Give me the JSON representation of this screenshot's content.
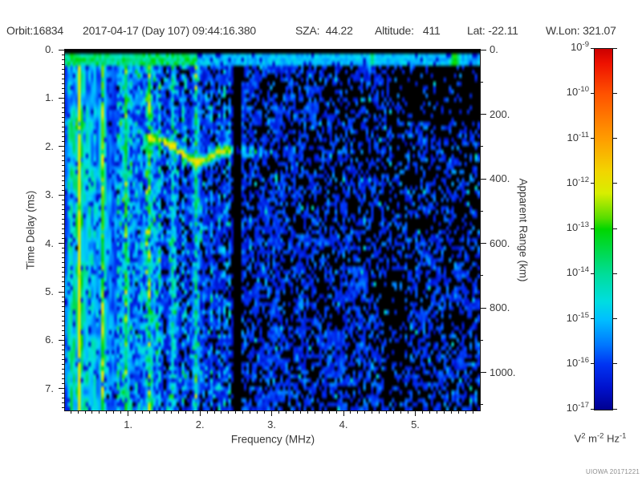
{
  "header": {
    "segments": [
      "Orbit:16834",
      "2017-04-17 (Day 107) 09:44:16.380",
      "SZA:  44.22",
      "Altitude:   411",
      "Lat: -22.11",
      "W.Lon: 321.07"
    ]
  },
  "chart_data": {
    "type": "heatmap",
    "title": "Orbit:16834  2017-04-17 (Day 107) 09:44:16.380  SZA: 44.22  Altitude: 411  Lat: -22.11  W.Lon: 321.07",
    "x_axis": {
      "label": "Frequency (MHz)",
      "min": 0.12,
      "max": 5.9,
      "ticks": [
        {
          "f": 1,
          "label": "1."
        },
        {
          "f": 2,
          "label": "2."
        },
        {
          "f": 3,
          "label": "3."
        },
        {
          "f": 4,
          "label": "4."
        },
        {
          "f": 5,
          "label": "5."
        }
      ],
      "minor_step": 0.1
    },
    "y_axis_left": {
      "label": "Time Delay (ms)",
      "min": 0,
      "max": 7.45,
      "ticks": [
        {
          "t": 0,
          "label": "0."
        },
        {
          "t": 1,
          "label": "1."
        },
        {
          "t": 2,
          "label": "2."
        },
        {
          "t": 3,
          "label": "3."
        },
        {
          "t": 4,
          "label": "4."
        },
        {
          "t": 5,
          "label": "5."
        },
        {
          "t": 6,
          "label": "6."
        },
        {
          "t": 7,
          "label": "7."
        }
      ],
      "minor_step": 0.1
    },
    "y_axis_right": {
      "label": "Apparent Range (km)",
      "km_per_ms": 150,
      "ticks": [
        {
          "km": 0,
          "label": "0."
        },
        {
          "km": 200,
          "label": "200."
        },
        {
          "km": 400,
          "label": "400."
        },
        {
          "km": 600,
          "label": "600."
        },
        {
          "km": 800,
          "label": "800."
        },
        {
          "km": 1000,
          "label": "1000."
        }
      ],
      "minor_step": 100
    },
    "colorbar": {
      "scale": "log",
      "exponents": [
        -9,
        -10,
        -11,
        -12,
        -13,
        -14,
        -15,
        -16,
        -17
      ],
      "unit_parts": [
        [
          "V",
          false
        ],
        [
          "2",
          true
        ],
        [
          " m",
          false
        ],
        [
          "-2",
          true
        ],
        [
          " Hz",
          false
        ],
        [
          "-1",
          true
        ]
      ],
      "stops": [
        {
          "p": 0.0,
          "c": "#cc0000"
        },
        {
          "p": 0.04,
          "c": "#ee1100"
        },
        {
          "p": 0.125,
          "c": "#ff5200"
        },
        {
          "p": 0.25,
          "c": "#ff9d00"
        },
        {
          "p": 0.34,
          "c": "#f2d500"
        },
        {
          "p": 0.4,
          "c": "#d8ee00"
        },
        {
          "p": 0.47,
          "c": "#55dd00"
        },
        {
          "p": 0.5,
          "c": "#00d600"
        },
        {
          "p": 0.625,
          "c": "#00dd9a"
        },
        {
          "p": 0.7,
          "c": "#00dde0"
        },
        {
          "p": 0.75,
          "c": "#00bfff"
        },
        {
          "p": 0.82,
          "c": "#0077ff"
        },
        {
          "p": 0.875,
          "c": "#0033f2"
        },
        {
          "p": 0.94,
          "c": "#0011cc"
        },
        {
          "p": 1.0,
          "c": "#000090"
        }
      ]
    },
    "spectrogram": {
      "seed": 11,
      "grid": {
        "cols": 160,
        "rows": 90
      },
      "f_range": [
        0.12,
        5.9
      ],
      "t_range": [
        0,
        7.45
      ],
      "value_to_scale_span": 0.63,
      "black_threshold": 0.045,
      "harmonics": {
        "f0": 0.325,
        "amps": [
          1.0,
          0.72,
          0.52,
          0.46,
          0.42,
          0.38
        ],
        "width_base": 0.022,
        "width_step": 0.004
      },
      "low_band": {
        "f_edge": 0.85,
        "amp": 0.62
      },
      "mid_band": {
        "f_from": 0.85,
        "f_to": 2.43,
        "density": 0.8,
        "amp": 0.3,
        "green_f_to": 1.45
      },
      "high_band": {
        "f_from": 2.43,
        "density0": 0.62,
        "density_slope": 0.05,
        "amp": 0.2
      },
      "gap": {
        "f_from": 2.46,
        "f_to": 2.58,
        "atten": 0.05,
        "soft_from": 2.42,
        "soft_atten": 0.45
      },
      "right_dark": {
        "f_from": 4.85,
        "t_to": 1.5,
        "atten": 0.35
      },
      "mid_dark_col": {
        "f_from": 4.55,
        "f_to": 4.85,
        "atten": 0.65
      },
      "top_black_ms": 0.1,
      "top_band": {
        "t_to": 0.34,
        "left_f_to": 1.95,
        "left_base": 0.5,
        "left_rand": 0.3,
        "right_base": 0.3,
        "right_rand": 0.16,
        "spots": [
          {
            "f": 4.4,
            "w": 0.06,
            "amp": 0.6
          },
          {
            "f": 5.55,
            "w": 0.1,
            "amp": 0.75
          }
        ]
      },
      "echo_trace": {
        "points": [
          [
            1.35,
            1.85
          ],
          [
            1.6,
            1.95
          ],
          [
            1.8,
            2.2
          ],
          [
            1.95,
            2.33
          ],
          [
            2.1,
            2.26
          ],
          [
            2.25,
            2.12
          ],
          [
            2.45,
            2.07
          ],
          [
            2.7,
            2.1
          ],
          [
            2.95,
            2.12
          ]
        ],
        "width_ms": 0.1,
        "amp": 0.85,
        "post_gap_amp": 0.45,
        "f_end": 3.0
      },
      "left_blob": {
        "f_to": 0.42,
        "t_center": 1.55,
        "t_width": 0.14,
        "amp": 0.3
      },
      "dropout_p": 0.05
    },
    "watermark": "UIOWA 20171221"
  }
}
